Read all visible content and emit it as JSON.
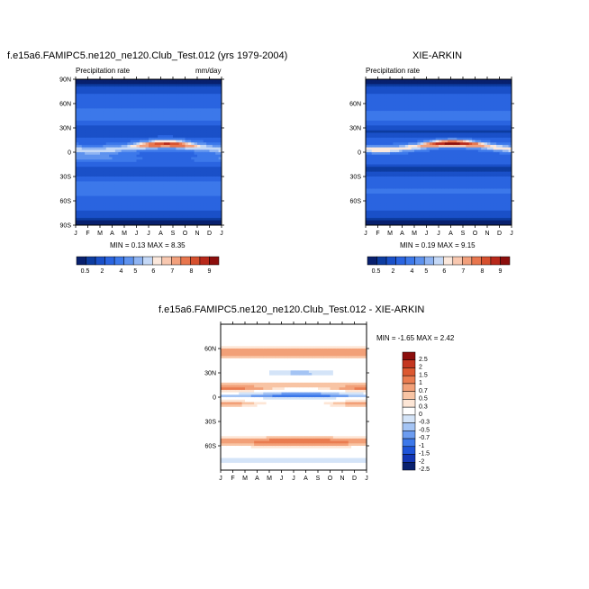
{
  "colors": {
    "pr_scale": [
      "#08206e",
      "#0d3ca0",
      "#1a50c8",
      "#2a64e0",
      "#3c78ea",
      "#5e92ee",
      "#8fb4f2",
      "#c4d8f6",
      "#fbe8dc",
      "#f8c8b0",
      "#f2a07c",
      "#e8764e",
      "#d6502e",
      "#b8281a",
      "#8c0e0c"
    ],
    "diff_scale": [
      "#08206e",
      "#1236b4",
      "#1e54d8",
      "#3c78ea",
      "#6c9cf0",
      "#a4c4f4",
      "#d4e4f8",
      "#ffffff",
      "#fde6d6",
      "#f8c4a4",
      "#f2a078",
      "#ea7c50",
      "#dc5830",
      "#c43620",
      "#8c0e0c"
    ]
  },
  "chart_data": [
    {
      "type": "heatmap",
      "title": "f.e15a6.FAMIPC5.ne120_ne120.Club_Test.012 (yrs 1979-2004)",
      "left_label": "Precipitation rate",
      "right_label": "mm/day",
      "x_ticks": [
        "J",
        "F",
        "M",
        "A",
        "M",
        "J",
        "J",
        "A",
        "S",
        "O",
        "N",
        "D",
        "J"
      ],
      "y_ticks": [
        "90N",
        "60N",
        "30N",
        "0",
        "30S",
        "60S",
        "90S"
      ],
      "min_max": "MIN =   0.13 MAX =   8.35",
      "min": 0.13,
      "max": 8.35,
      "colorbar_labels": [
        "0.5",
        "2",
        "4",
        "5",
        "6",
        "7",
        "8",
        "9"
      ]
    },
    {
      "type": "heatmap",
      "title": "XIE-ARKIN",
      "left_label": "Precipitation rate",
      "right_label": "",
      "x_ticks": [
        "J",
        "F",
        "M",
        "A",
        "M",
        "J",
        "J",
        "A",
        "S",
        "O",
        "N",
        "D",
        "J"
      ],
      "y_ticks": [
        "60N",
        "30N",
        "0",
        "30S",
        "60S"
      ],
      "min_max": "MIN =   0.19 MAX =   9.15",
      "min": 0.19,
      "max": 9.15,
      "colorbar_labels": [
        "0.5",
        "2",
        "4",
        "5",
        "6",
        "7",
        "8",
        "9"
      ]
    },
    {
      "type": "heatmap",
      "title": "f.e15a6.FAMIPC5.ne120_ne120.Club_Test.012 - XIE-ARKIN",
      "x_ticks": [
        "J",
        "F",
        "M",
        "A",
        "M",
        "J",
        "J",
        "A",
        "S",
        "O",
        "N",
        "D",
        "J"
      ],
      "y_ticks": [
        "60N",
        "30N",
        "0",
        "30S",
        "60S"
      ],
      "min_max": "MIN =  -1.65 MAX =   2.42",
      "min": -1.65,
      "max": 2.42,
      "colorbar_labels": [
        "2.5",
        "2",
        "1.5",
        "1",
        "0.7",
        "0.5",
        "0.3",
        "0",
        "-0.3",
        "-0.5",
        "-0.7",
        "-1",
        "-1.5",
        "-2",
        "-2.5"
      ]
    }
  ]
}
